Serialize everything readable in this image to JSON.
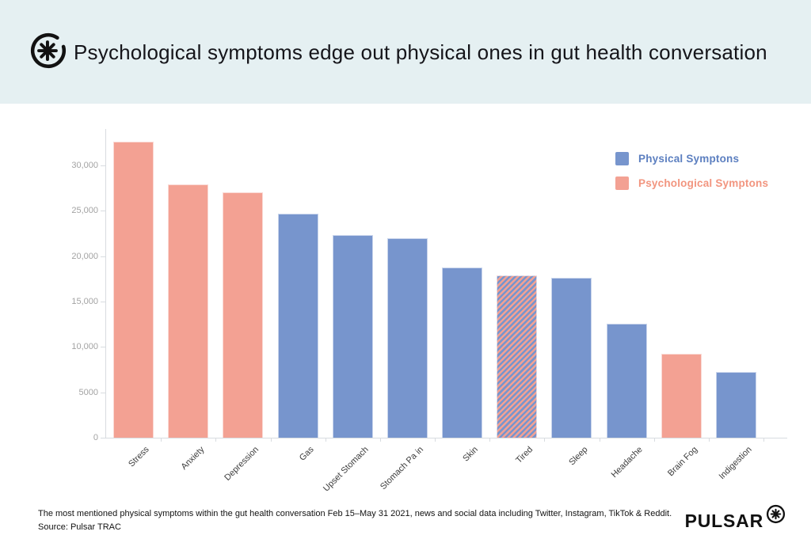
{
  "header": {
    "title": "Psychological symptoms edge out physical ones in gut health conversation"
  },
  "legend": {
    "items": [
      {
        "label": "Physical Symptons",
        "swatch_color": "#7795cd",
        "text_color": "#5c7fc0",
        "kind": "physical"
      },
      {
        "label": "Psychological Symptons",
        "swatch_color": "#f3a193",
        "text_color": "#f2957f",
        "kind": "psychological"
      }
    ]
  },
  "chart_data": {
    "type": "bar",
    "title": "Psychological symptoms edge out physical ones in gut health conversation",
    "xlabel": "",
    "ylabel": "",
    "ylim": [
      0,
      34000
    ],
    "grid": false,
    "legend_position": "top-right",
    "categories": [
      "Stress",
      "Anxiety",
      "Depression",
      "Gas",
      "Upset Stomach",
      "Stomach Pa in",
      "Skin",
      "Tired",
      "Sleep",
      "Headache",
      "Brain Fog",
      "Indigestion"
    ],
    "values": [
      32600,
      27900,
      27000,
      24700,
      22300,
      22000,
      18750,
      17900,
      17600,
      12550,
      9200,
      7250
    ],
    "kinds": [
      "psychological",
      "psychological",
      "psychological",
      "physical",
      "physical",
      "physical",
      "physical",
      "both",
      "physical",
      "physical",
      "psychological",
      "physical"
    ],
    "yticks": [
      {
        "value": 0,
        "label": "0"
      },
      {
        "value": 5000,
        "label": "5000"
      },
      {
        "value": 10000,
        "label": "10,000"
      },
      {
        "value": 15000,
        "label": "15,000"
      },
      {
        "value": 20000,
        "label": "20,000"
      },
      {
        "value": 25000,
        "label": "25,000"
      },
      {
        "value": 30000,
        "label": "30,000"
      }
    ],
    "note": "Tired bar is hatched with diagonal blue/salmon stripes (counts as both physical and psychological)"
  },
  "colors": {
    "physical": "#7795cd",
    "psychological": "#f3a193",
    "header_bg": "#e5f0f2",
    "axis": "#d8dce0",
    "ytick_text": "#a3a3a3",
    "xtick_text": "#3c3c3c"
  },
  "footer": {
    "caption": "The most mentioned physical symptoms within the gut health conversation Feb 15–May 31 2021, news and social data including Twitter, Instagram, TikTok & Reddit.",
    "source": "Source: Pulsar TRAC",
    "brand": "PULSAR"
  },
  "icons": {
    "header_logo": "pulsar-asterisk-open-circle",
    "brand_logo": "pulsar-asterisk-circle"
  }
}
